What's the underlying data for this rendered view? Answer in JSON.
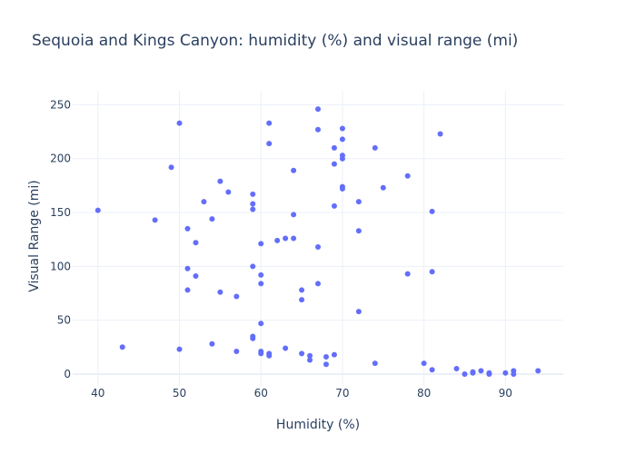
{
  "chart_data": {
    "type": "scatter",
    "title": "Sequoia and Kings Canyon: humidity (%) and visual range (mi)",
    "xlabel": "Humidity (%)",
    "ylabel": "Visual Range (mi)",
    "xlim": [
      36.9,
      97.1
    ],
    "ylim": [
      -11,
      263
    ],
    "x_ticks": [
      40,
      50,
      60,
      70,
      80,
      90
    ],
    "y_ticks": [
      0,
      50,
      100,
      150,
      200,
      250
    ],
    "grid": true,
    "legend": "none",
    "marker_color": "#636efa",
    "series": [
      {
        "x": [
          40,
          43,
          47,
          49,
          50,
          50,
          51,
          51,
          51,
          52,
          52,
          53,
          54,
          54,
          55,
          55,
          56,
          57,
          57,
          59,
          59,
          59,
          59,
          59,
          59,
          60,
          60,
          60,
          60,
          60,
          60,
          61,
          61,
          61,
          61,
          62,
          63,
          63,
          64,
          64,
          64,
          65,
          65,
          65,
          66,
          66,
          67,
          67,
          67,
          67,
          68,
          68,
          69,
          69,
          69,
          69,
          70,
          70,
          70,
          70,
          70,
          70,
          72,
          72,
          72,
          74,
          74,
          75,
          78,
          78,
          80,
          81,
          81,
          81,
          82,
          84,
          85,
          86,
          86,
          87,
          88,
          88,
          90,
          91,
          91,
          94
        ],
        "y": [
          152,
          25,
          143,
          192,
          233,
          23,
          135,
          98,
          78,
          122,
          91,
          160,
          144,
          28,
          179,
          76,
          169,
          72,
          21,
          167,
          158,
          153,
          100,
          35,
          33,
          121,
          92,
          84,
          47,
          21,
          19,
          233,
          214,
          19,
          17,
          124,
          126,
          24,
          189,
          148,
          126,
          78,
          69,
          19,
          17,
          13,
          246,
          227,
          118,
          84,
          16,
          9,
          210,
          195,
          156,
          18,
          228,
          218,
          203,
          200,
          174,
          172,
          160,
          133,
          58,
          210,
          10,
          173,
          184,
          93,
          10,
          151,
          95,
          4,
          223,
          5,
          0,
          2,
          1,
          3,
          1,
          0,
          1,
          3,
          0,
          3
        ]
      }
    ]
  }
}
